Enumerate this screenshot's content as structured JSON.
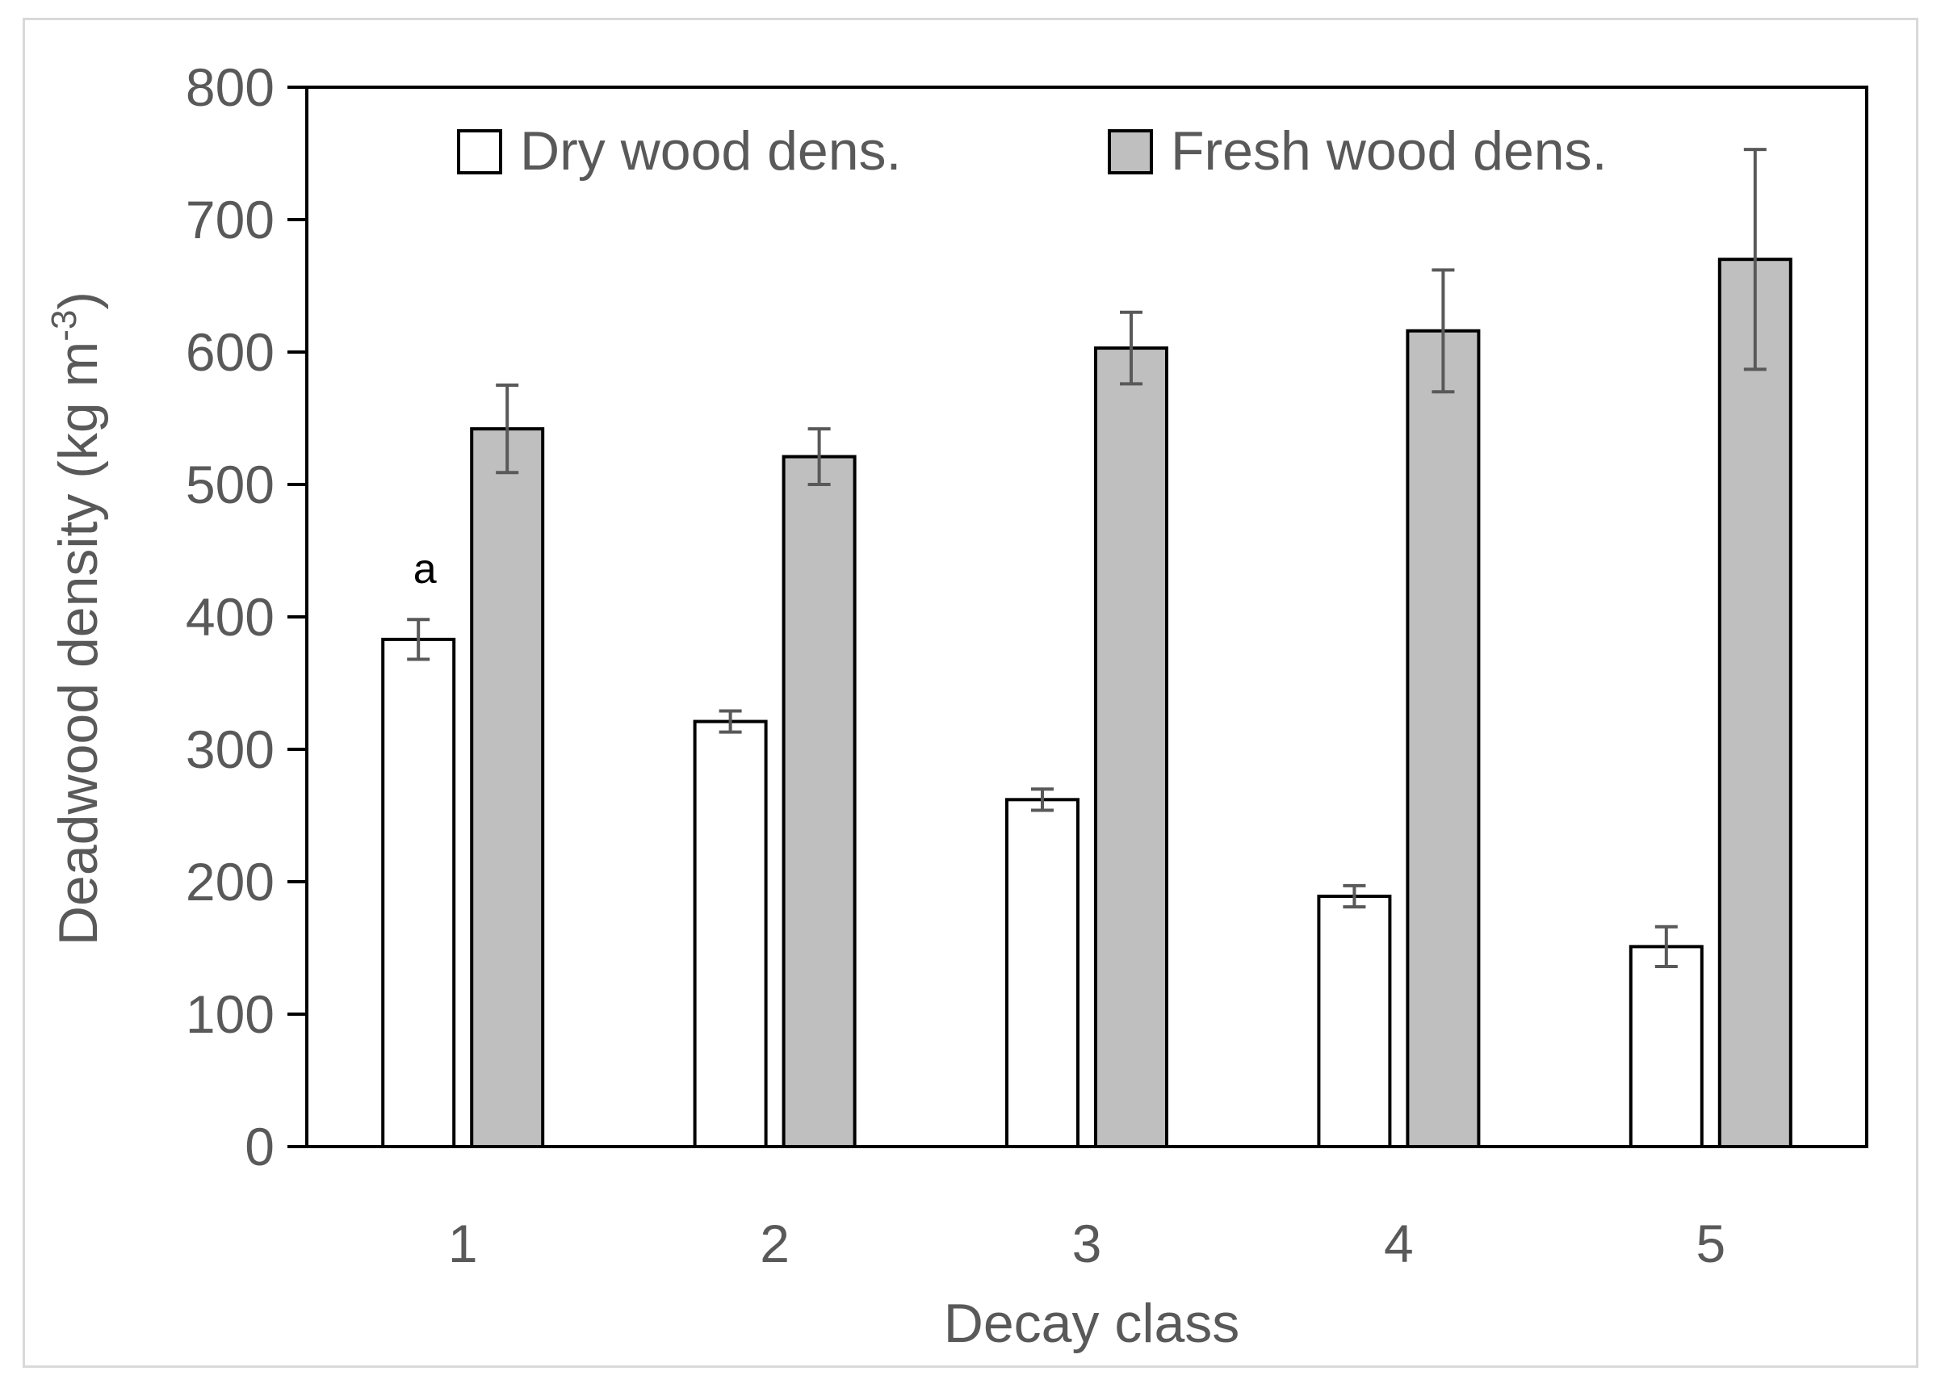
{
  "chart_data": {
    "type": "bar",
    "title": "",
    "xlabel": "Decay class",
    "ylabel": "Deadwood density (kg  m",
    "ylabel_sup": "-3",
    "ylabel_close": ")",
    "categories": [
      "1",
      "2",
      "3",
      "4",
      "5"
    ],
    "ylim": [
      0,
      800
    ],
    "yticks": [
      0,
      100,
      200,
      300,
      400,
      500,
      600,
      700,
      800
    ],
    "grid": false,
    "legend": "top",
    "series": [
      {
        "name": "Dry wood dens.",
        "color": "#ffffff",
        "values": [
          383,
          321,
          262,
          189,
          151
        ],
        "errors": [
          15,
          8,
          8,
          8,
          15
        ]
      },
      {
        "name": "Fresh wood dens.",
        "color": "#bfbfbf",
        "values": [
          542,
          521,
          603,
          616,
          670
        ],
        "errors": [
          33,
          21,
          27,
          46,
          83
        ]
      }
    ],
    "annotations": [
      {
        "text": "a",
        "category": "1",
        "series": "Dry wood dens."
      }
    ]
  }
}
